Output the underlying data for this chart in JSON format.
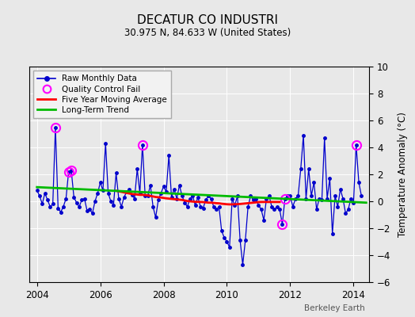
{
  "title": "DECATUR CO INDUSTRI",
  "subtitle": "30.975 N, 84.633 W (United States)",
  "ylabel": "Temperature Anomaly (°C)",
  "watermark": "Berkeley Earth",
  "ylim": [
    -6,
    10
  ],
  "xlim": [
    2003.75,
    2014.5
  ],
  "xticks": [
    2004,
    2006,
    2008,
    2010,
    2012,
    2014
  ],
  "yticks": [
    -6,
    -4,
    -2,
    0,
    2,
    4,
    6,
    8,
    10
  ],
  "bg_color": "#e8e8e8",
  "raw_color": "#0000cc",
  "ma_color": "#ff0000",
  "trend_color": "#00bb00",
  "qc_color": "#ff00ff",
  "raw_data": [
    [
      2004.0,
      0.8
    ],
    [
      2004.083,
      0.4
    ],
    [
      2004.167,
      -0.2
    ],
    [
      2004.25,
      0.6
    ],
    [
      2004.333,
      0.1
    ],
    [
      2004.417,
      -0.4
    ],
    [
      2004.5,
      -0.2
    ],
    [
      2004.583,
      5.5
    ],
    [
      2004.667,
      -0.5
    ],
    [
      2004.75,
      -0.8
    ],
    [
      2004.833,
      -0.4
    ],
    [
      2004.917,
      0.2
    ],
    [
      2005.0,
      2.2
    ],
    [
      2005.083,
      2.3
    ],
    [
      2005.167,
      0.3
    ],
    [
      2005.25,
      -0.1
    ],
    [
      2005.333,
      -0.4
    ],
    [
      2005.417,
      0.1
    ],
    [
      2005.5,
      0.2
    ],
    [
      2005.583,
      -0.7
    ],
    [
      2005.667,
      -0.6
    ],
    [
      2005.75,
      -0.9
    ],
    [
      2005.833,
      0.0
    ],
    [
      2005.917,
      0.6
    ],
    [
      2006.0,
      1.4
    ],
    [
      2006.083,
      0.8
    ],
    [
      2006.167,
      4.3
    ],
    [
      2006.25,
      0.6
    ],
    [
      2006.333,
      0.0
    ],
    [
      2006.417,
      -0.3
    ],
    [
      2006.5,
      2.1
    ],
    [
      2006.583,
      0.2
    ],
    [
      2006.667,
      -0.4
    ],
    [
      2006.75,
      0.3
    ],
    [
      2006.833,
      0.7
    ],
    [
      2006.917,
      0.9
    ],
    [
      2007.0,
      0.5
    ],
    [
      2007.083,
      0.2
    ],
    [
      2007.167,
      2.4
    ],
    [
      2007.25,
      0.6
    ],
    [
      2007.333,
      4.2
    ],
    [
      2007.417,
      0.4
    ],
    [
      2007.5,
      0.4
    ],
    [
      2007.583,
      1.2
    ],
    [
      2007.667,
      -0.4
    ],
    [
      2007.75,
      -1.2
    ],
    [
      2007.833,
      0.1
    ],
    [
      2007.917,
      0.6
    ],
    [
      2008.0,
      1.1
    ],
    [
      2008.083,
      0.7
    ],
    [
      2008.167,
      3.4
    ],
    [
      2008.25,
      0.3
    ],
    [
      2008.333,
      0.9
    ],
    [
      2008.417,
      0.2
    ],
    [
      2008.5,
      1.2
    ],
    [
      2008.583,
      0.4
    ],
    [
      2008.667,
      -0.1
    ],
    [
      2008.75,
      -0.4
    ],
    [
      2008.833,
      0.2
    ],
    [
      2008.917,
      0.4
    ],
    [
      2009.0,
      -0.3
    ],
    [
      2009.083,
      0.3
    ],
    [
      2009.167,
      -0.4
    ],
    [
      2009.25,
      -0.5
    ],
    [
      2009.333,
      0.1
    ],
    [
      2009.417,
      0.4
    ],
    [
      2009.5,
      0.2
    ],
    [
      2009.583,
      -0.4
    ],
    [
      2009.667,
      -0.6
    ],
    [
      2009.75,
      -0.4
    ],
    [
      2009.833,
      -2.2
    ],
    [
      2009.917,
      -2.7
    ],
    [
      2010.0,
      -3.0
    ],
    [
      2010.083,
      -3.4
    ],
    [
      2010.167,
      0.2
    ],
    [
      2010.25,
      -0.3
    ],
    [
      2010.333,
      0.4
    ],
    [
      2010.417,
      -2.9
    ],
    [
      2010.5,
      -4.7
    ],
    [
      2010.583,
      -2.9
    ],
    [
      2010.667,
      -0.4
    ],
    [
      2010.75,
      0.4
    ],
    [
      2010.833,
      0.1
    ],
    [
      2010.917,
      0.2
    ],
    [
      2011.0,
      -0.3
    ],
    [
      2011.083,
      -0.6
    ],
    [
      2011.167,
      -1.4
    ],
    [
      2011.25,
      0.2
    ],
    [
      2011.333,
      0.4
    ],
    [
      2011.417,
      -0.4
    ],
    [
      2011.5,
      -0.6
    ],
    [
      2011.583,
      -0.4
    ],
    [
      2011.667,
      -0.6
    ],
    [
      2011.75,
      -1.7
    ],
    [
      2011.833,
      0.2
    ],
    [
      2011.917,
      0.4
    ],
    [
      2012.0,
      0.4
    ],
    [
      2012.083,
      -0.4
    ],
    [
      2012.167,
      0.2
    ],
    [
      2012.25,
      0.4
    ],
    [
      2012.333,
      2.4
    ],
    [
      2012.417,
      4.9
    ],
    [
      2012.5,
      0.2
    ],
    [
      2012.583,
      2.4
    ],
    [
      2012.667,
      0.4
    ],
    [
      2012.75,
      1.4
    ],
    [
      2012.833,
      -0.6
    ],
    [
      2012.917,
      0.2
    ],
    [
      2013.0,
      0.1
    ],
    [
      2013.083,
      4.7
    ],
    [
      2013.167,
      0.2
    ],
    [
      2013.25,
      1.7
    ],
    [
      2013.333,
      -2.4
    ],
    [
      2013.417,
      0.4
    ],
    [
      2013.5,
      -0.4
    ],
    [
      2013.583,
      0.9
    ],
    [
      2013.667,
      0.2
    ],
    [
      2013.75,
      -0.9
    ],
    [
      2013.833,
      -0.6
    ],
    [
      2013.917,
      0.2
    ],
    [
      2014.0,
      -0.1
    ],
    [
      2014.083,
      4.2
    ],
    [
      2014.167,
      1.4
    ],
    [
      2014.25,
      0.4
    ]
  ],
  "qc_fail_points": [
    [
      2004.583,
      5.5
    ],
    [
      2005.0,
      2.2
    ],
    [
      2005.083,
      2.3
    ],
    [
      2007.333,
      4.2
    ],
    [
      2011.75,
      -1.7
    ],
    [
      2011.833,
      0.2
    ],
    [
      2014.083,
      4.2
    ]
  ],
  "moving_avg": [
    [
      2006.5,
      0.78
    ],
    [
      2006.583,
      0.74
    ],
    [
      2006.667,
      0.7
    ],
    [
      2006.75,
      0.66
    ],
    [
      2006.833,
      0.62
    ],
    [
      2006.917,
      0.58
    ],
    [
      2007.0,
      0.54
    ],
    [
      2007.083,
      0.52
    ],
    [
      2007.167,
      0.5
    ],
    [
      2007.25,
      0.48
    ],
    [
      2007.333,
      0.48
    ],
    [
      2007.417,
      0.46
    ],
    [
      2007.5,
      0.44
    ],
    [
      2007.583,
      0.4
    ],
    [
      2007.667,
      0.36
    ],
    [
      2007.75,
      0.32
    ],
    [
      2007.833,
      0.3
    ],
    [
      2007.917,
      0.28
    ],
    [
      2008.0,
      0.25
    ],
    [
      2008.083,
      0.22
    ],
    [
      2008.167,
      0.2
    ],
    [
      2008.25,
      0.18
    ],
    [
      2008.333,
      0.16
    ],
    [
      2008.417,
      0.14
    ],
    [
      2008.5,
      0.12
    ],
    [
      2008.583,
      0.1
    ],
    [
      2008.667,
      0.06
    ],
    [
      2008.75,
      0.02
    ],
    [
      2008.833,
      0.0
    ],
    [
      2008.917,
      -0.02
    ],
    [
      2009.0,
      -0.04
    ],
    [
      2009.083,
      -0.04
    ],
    [
      2009.167,
      -0.05
    ],
    [
      2009.25,
      -0.06
    ],
    [
      2009.333,
      -0.08
    ],
    [
      2009.417,
      -0.1
    ],
    [
      2009.5,
      -0.1
    ],
    [
      2009.583,
      -0.12
    ],
    [
      2009.667,
      -0.14
    ],
    [
      2009.75,
      -0.15
    ],
    [
      2009.833,
      -0.18
    ],
    [
      2009.917,
      -0.2
    ],
    [
      2010.0,
      -0.22
    ],
    [
      2010.083,
      -0.23
    ],
    [
      2010.167,
      -0.23
    ],
    [
      2010.25,
      -0.22
    ],
    [
      2010.333,
      -0.21
    ],
    [
      2010.417,
      -0.2
    ],
    [
      2010.5,
      -0.18
    ],
    [
      2010.583,
      -0.16
    ],
    [
      2010.667,
      -0.14
    ],
    [
      2010.75,
      -0.12
    ],
    [
      2010.833,
      -0.1
    ],
    [
      2010.917,
      -0.08
    ],
    [
      2011.0,
      -0.06
    ],
    [
      2011.083,
      -0.05
    ],
    [
      2011.167,
      -0.05
    ],
    [
      2011.25,
      -0.05
    ],
    [
      2011.333,
      -0.05
    ],
    [
      2011.417,
      -0.05
    ],
    [
      2011.5,
      -0.05
    ],
    [
      2011.583,
      -0.05
    ],
    [
      2011.667,
      -0.05
    ]
  ],
  "trend_line": [
    [
      2004.0,
      1.05
    ],
    [
      2014.4,
      -0.1
    ]
  ]
}
